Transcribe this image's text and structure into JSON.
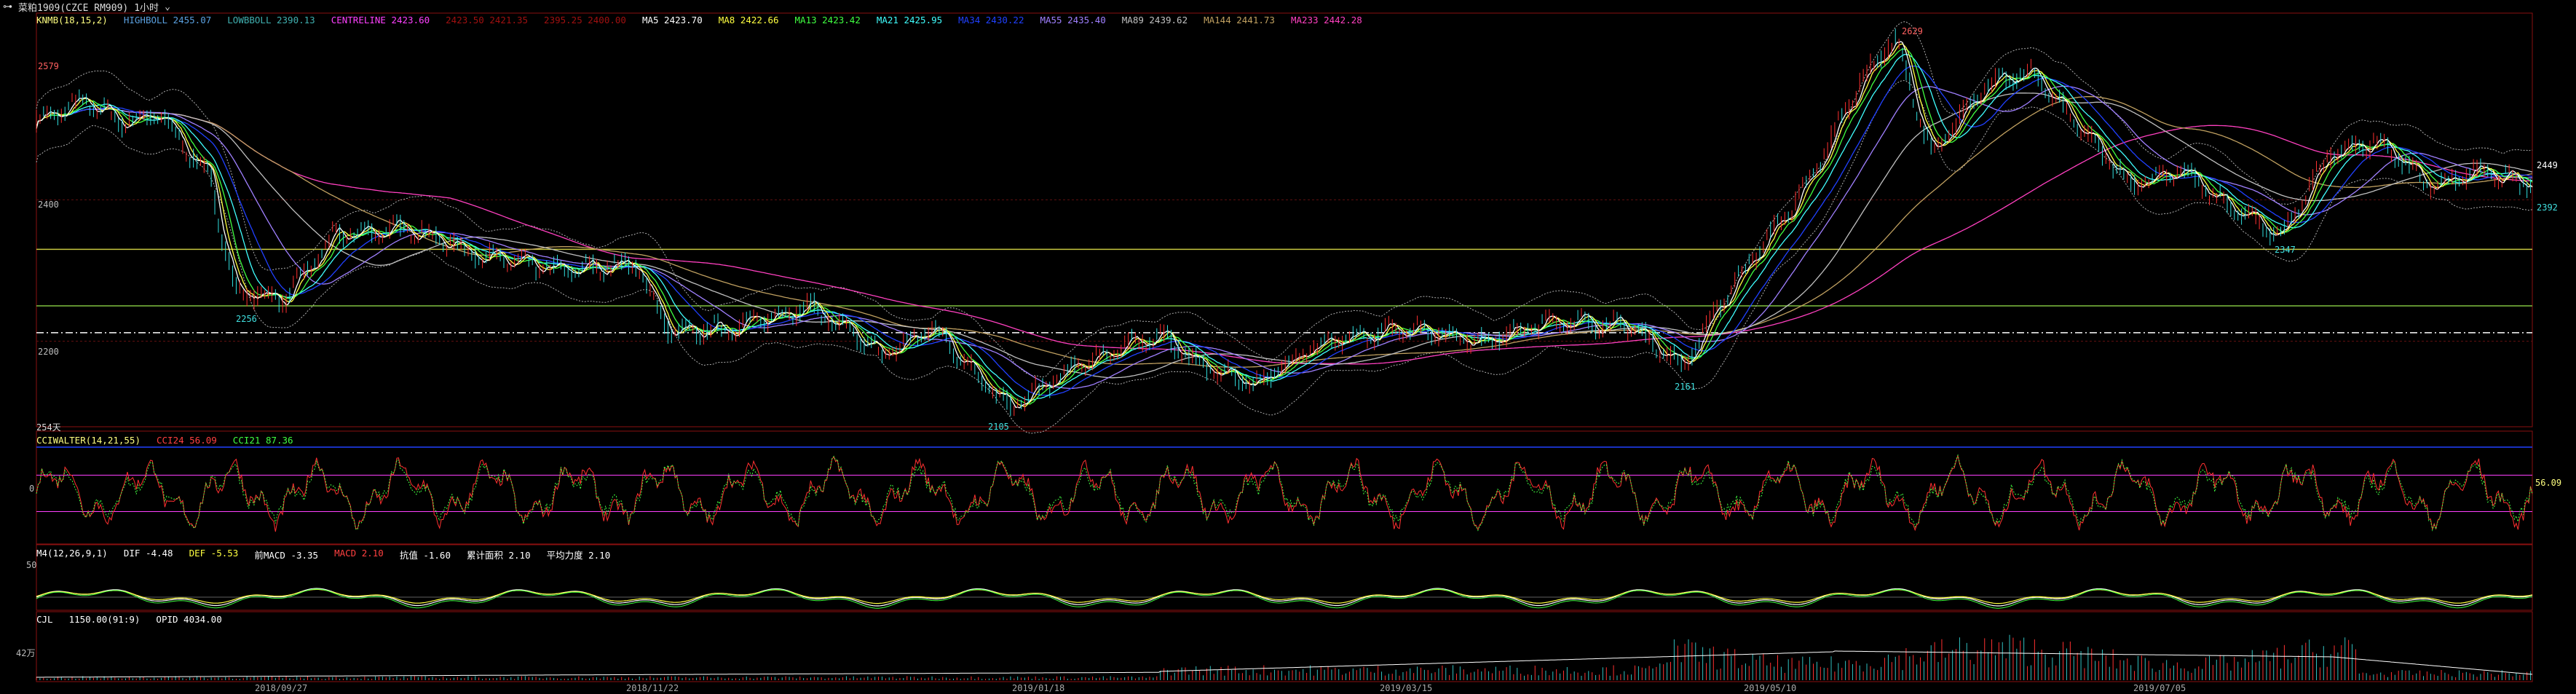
{
  "topbar": {
    "symbol": "菜粕1909(CZCE RM909)",
    "period": "1小时",
    "icon_menu": "menu-icon"
  },
  "main_header": {
    "name": "KNMB(18,15,2)",
    "items": [
      {
        "label": "HIGHBOLL 2455.07",
        "color": "#5aa0e0"
      },
      {
        "label": "LOWBBOLL 2390.13",
        "color": "#40b0b0"
      },
      {
        "label": "CENTRELINE 2423.60",
        "color": "#ff40ff"
      },
      {
        "label": "2423.50 2421.35",
        "color": "#a01010"
      },
      {
        "label": "2395.25 2400.00",
        "color": "#a01010"
      },
      {
        "label": "MA5 2423.70",
        "color": "#ffffff"
      },
      {
        "label": "MA8 2422.66",
        "color": "#ffff40"
      },
      {
        "label": "MA13 2423.42",
        "color": "#40ff40"
      },
      {
        "label": "MA21 2425.95",
        "color": "#40ffff"
      },
      {
        "label": "MA34 2430.22",
        "color": "#2040ff"
      },
      {
        "label": "MA55 2435.40",
        "color": "#a080ff"
      },
      {
        "label": "MA89 2439.62",
        "color": "#c0c0c0"
      },
      {
        "label": "MA144 2441.73",
        "color": "#c0a060"
      },
      {
        "label": "MA233 2442.28",
        "color": "#ff40c0"
      }
    ]
  },
  "main_labels": {
    "y_ticks": [
      "2579",
      "2400",
      "2200"
    ],
    "high": "2629",
    "low": "2105",
    "l1": "2256",
    "l2": "2161",
    "l3": "2347",
    "right_last": "2449",
    "right_low": "2392",
    "bars_count": "254天"
  },
  "cci_header": {
    "name": "CCIWALTER(14,21,55)",
    "items": [
      {
        "label": "CCI24 56.09",
        "color": "#ff4040"
      },
      {
        "label": "CCI21 87.36",
        "color": "#40ff40"
      }
    ],
    "y_tick": "0",
    "right_val": "56.09"
  },
  "macd_header": {
    "name": "M4(12,26,9,1)",
    "items": [
      {
        "label": "DIF -4.48",
        "color": "#ffffff"
      },
      {
        "label": "DEF -5.53",
        "color": "#ffff40"
      },
      {
        "label": "前MACD -3.35",
        "color": "#ffffff"
      },
      {
        "label": "MACD 2.10",
        "color": "#ff4040"
      },
      {
        "label": "抗值 -1.60",
        "color": "#ffffff"
      },
      {
        "label": "累计面积 2.10",
        "color": "#ffffff"
      },
      {
        "label": "平均力度 2.10",
        "color": "#ffffff"
      }
    ],
    "y_tick": "50"
  },
  "vol_header": {
    "name": "CJL",
    "items": [
      {
        "label": "1150.00(91:9)",
        "color": "#ffffff"
      },
      {
        "label": "OPID 4034.00",
        "color": "#ffffff"
      }
    ],
    "y_tick": "42万"
  },
  "x_labels": [
    "2018/09/27",
    "2018/11/22",
    "2019/01/18",
    "2019/03/15",
    "2019/05/10",
    "2019/07/05"
  ],
  "chart_data": {
    "type": "line",
    "title": "",
    "xlabel": "",
    "ylabel": "",
    "x": [
      "2018/09/27",
      "2018/11/22",
      "2019/01/18",
      "2019/03/15",
      "2019/05/10",
      "2019/07/05"
    ],
    "price_keypoints": [
      {
        "x": 0.0,
        "y": 2510
      },
      {
        "x": 0.02,
        "y": 2540
      },
      {
        "x": 0.035,
        "y": 2510
      },
      {
        "x": 0.05,
        "y": 2520
      },
      {
        "x": 0.07,
        "y": 2430
      },
      {
        "x": 0.08,
        "y": 2270
      },
      {
        "x": 0.1,
        "y": 2260
      },
      {
        "x": 0.12,
        "y": 2350
      },
      {
        "x": 0.15,
        "y": 2360
      },
      {
        "x": 0.18,
        "y": 2320
      },
      {
        "x": 0.21,
        "y": 2300
      },
      {
        "x": 0.24,
        "y": 2310
      },
      {
        "x": 0.255,
        "y": 2210
      },
      {
        "x": 0.28,
        "y": 2220
      },
      {
        "x": 0.31,
        "y": 2250
      },
      {
        "x": 0.34,
        "y": 2180
      },
      {
        "x": 0.36,
        "y": 2220
      },
      {
        "x": 0.39,
        "y": 2105
      },
      {
        "x": 0.42,
        "y": 2170
      },
      {
        "x": 0.45,
        "y": 2210
      },
      {
        "x": 0.47,
        "y": 2160
      },
      {
        "x": 0.49,
        "y": 2140
      },
      {
        "x": 0.51,
        "y": 2190
      },
      {
        "x": 0.55,
        "y": 2220
      },
      {
        "x": 0.58,
        "y": 2200
      },
      {
        "x": 0.61,
        "y": 2230
      },
      {
        "x": 0.64,
        "y": 2220
      },
      {
        "x": 0.66,
        "y": 2165
      },
      {
        "x": 0.68,
        "y": 2280
      },
      {
        "x": 0.71,
        "y": 2420
      },
      {
        "x": 0.73,
        "y": 2560
      },
      {
        "x": 0.745,
        "y": 2629
      },
      {
        "x": 0.76,
        "y": 2460
      },
      {
        "x": 0.78,
        "y": 2560
      },
      {
        "x": 0.8,
        "y": 2580
      },
      {
        "x": 0.82,
        "y": 2500
      },
      {
        "x": 0.84,
        "y": 2420
      },
      {
        "x": 0.86,
        "y": 2440
      },
      {
        "x": 0.88,
        "y": 2390
      },
      {
        "x": 0.9,
        "y": 2347
      },
      {
        "x": 0.92,
        "y": 2470
      },
      {
        "x": 0.94,
        "y": 2480
      },
      {
        "x": 0.96,
        "y": 2420
      },
      {
        "x": 0.98,
        "y": 2440
      },
      {
        "x": 1.0,
        "y": 2420
      }
    ],
    "ylim": [
      2080,
      2660
    ],
    "h_lines": [
      2330,
      2250,
      2212
    ]
  }
}
